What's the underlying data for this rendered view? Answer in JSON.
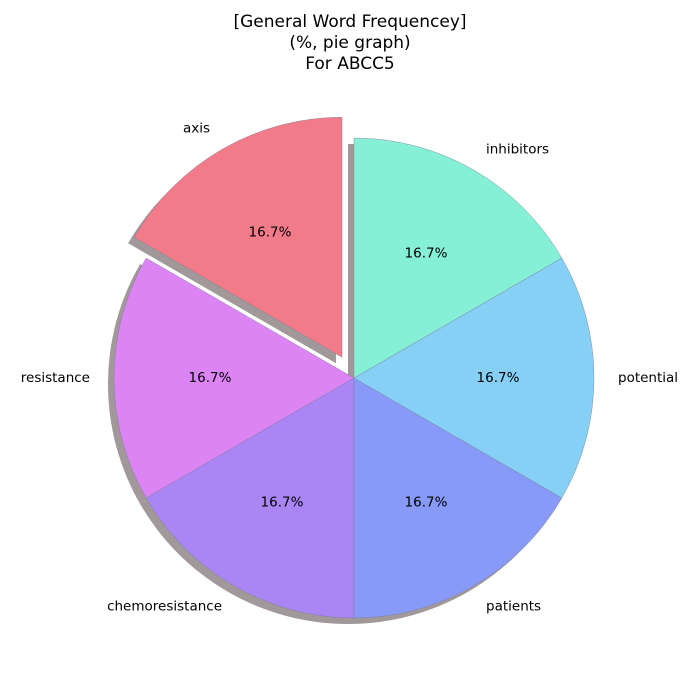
{
  "chart_data": {
    "type": "pie",
    "title_lines": [
      "[General Word Frequencey]",
      "(%, pie graph)",
      "For ABCC5"
    ],
    "slices": [
      {
        "label": "axis",
        "value": 16.7,
        "pct_label": "16.7%",
        "color": "#f27b8a",
        "exploded": true
      },
      {
        "label": "resistance",
        "value": 16.7,
        "pct_label": "16.7%",
        "color": "#dd84f5",
        "exploded": false
      },
      {
        "label": "chemoresistance",
        "value": 16.7,
        "pct_label": "16.7%",
        "color": "#aa86f5",
        "exploded": false
      },
      {
        "label": "patients",
        "value": 16.7,
        "pct_label": "16.7%",
        "color": "#879af7",
        "exploded": false
      },
      {
        "label": "potential",
        "value": 16.7,
        "pct_label": "16.7%",
        "color": "#86d0f6",
        "exploded": false
      },
      {
        "label": "inhibitors",
        "value": 16.7,
        "pct_label": "16.7%",
        "color": "#86f0d6",
        "exploded": false
      }
    ],
    "start_angle_deg": 90,
    "direction": "counterclockwise",
    "shadow": true,
    "legend": "none"
  }
}
